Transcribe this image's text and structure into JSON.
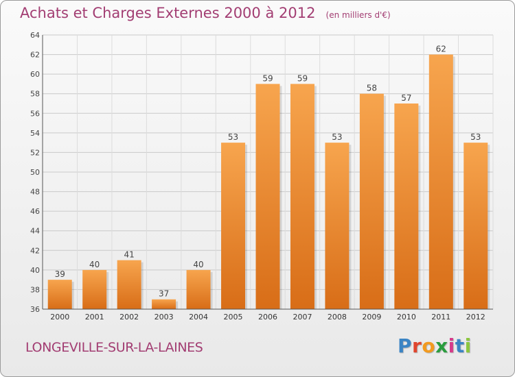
{
  "chart_data": {
    "type": "bar",
    "title": "Achats et Charges Externes 2000 à 2012",
    "subtitle": "(en milliers d'€)",
    "categories": [
      "2000",
      "2001",
      "2002",
      "2003",
      "2004",
      "2005",
      "2006",
      "2007",
      "2008",
      "2009",
      "2010",
      "2011",
      "2012"
    ],
    "values": [
      39,
      40,
      41,
      37,
      40,
      53,
      59,
      59,
      53,
      58,
      57,
      62,
      53
    ],
    "ylim": [
      36,
      64
    ],
    "yticks": [
      36,
      38,
      40,
      42,
      44,
      46,
      48,
      50,
      52,
      54,
      56,
      58,
      60,
      62,
      64
    ],
    "grid": true,
    "bar_color_top": "#f7a54e",
    "bar_color_bottom": "#d86d17"
  },
  "footer": {
    "commune": "LONGEVILLE-SUR-LA-LAINES",
    "brand_letters": [
      "P",
      "r",
      "o",
      "x",
      "i",
      "t",
      "i"
    ],
    "brand_colors": [
      "#3b84c4",
      "#e0452e",
      "#f29a1f",
      "#2a9d3e",
      "#d63b8a",
      "#3b84c4",
      "#8cc63f"
    ]
  }
}
